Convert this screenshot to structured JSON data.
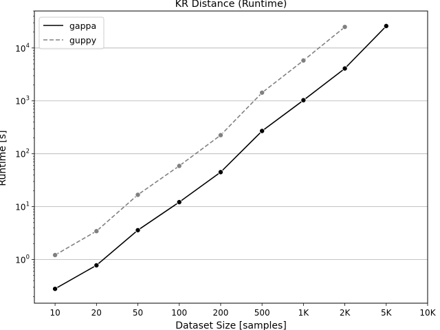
{
  "chart_data": {
    "type": "line",
    "title": "KR Distance  (Runtime)",
    "xlabel": "Dataset Size  [samples]",
    "ylabel": "Runtime  [s]",
    "categories": [
      "10",
      "20",
      "50",
      "100",
      "200",
      "500",
      "1K",
      "2K",
      "5K",
      "10K"
    ],
    "yscale": "log",
    "ylim": [
      0.15,
      50000
    ],
    "y_ticks": [
      {
        "value": 1,
        "base": "10",
        "exp": "0"
      },
      {
        "value": 10,
        "base": "10",
        "exp": "1"
      },
      {
        "value": 100,
        "base": "10",
        "exp": "2"
      },
      {
        "value": 1000,
        "base": "10",
        "exp": "3"
      },
      {
        "value": 10000,
        "base": "10",
        "exp": "4"
      }
    ],
    "grid": "y-major",
    "legend_position": "top-left",
    "series": [
      {
        "name": "gappa",
        "color": "#000000",
        "dash": "solid",
        "values": [
          0.28,
          0.78,
          3.6,
          12.2,
          45,
          270,
          1030,
          4100,
          26000,
          null
        ]
      },
      {
        "name": "guppy",
        "color": "#808080",
        "dash": "dashed",
        "values": [
          1.22,
          3.45,
          16.8,
          59,
          225,
          1430,
          5800,
          25000,
          null,
          null
        ]
      }
    ]
  }
}
